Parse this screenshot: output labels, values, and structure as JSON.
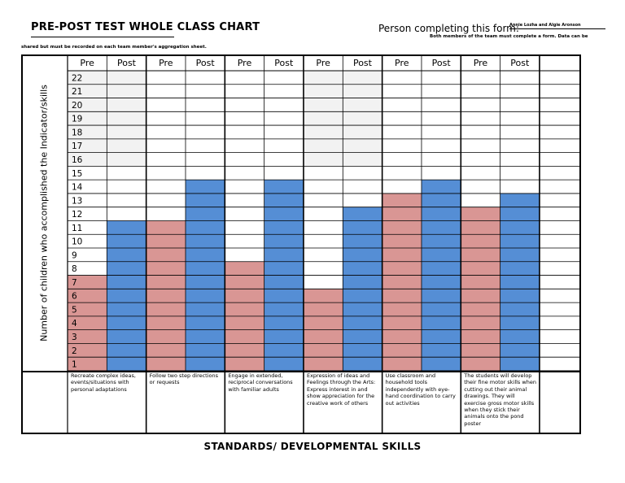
{
  "header": {
    "title": "PRE-POST TEST WHOLE CLASS CHART",
    "person_label": "Person completing this form:",
    "person_value": "Annie Lozha and Algie Aronson",
    "note_right": "Both members of the team must complete a form.  Data can be",
    "note_left": "shared but must be recorded on each team member's aggregation sheet."
  },
  "chart_data": {
    "type": "bar",
    "ylabel": "Number of children who accomplished the Indicator/skills",
    "xlabel": "STANDARDS/ DEVELOPMENTAL SKILLS",
    "ylim": [
      0,
      22
    ],
    "y_ticks": [
      "22",
      "21",
      "20",
      "19",
      "18",
      "17",
      "16",
      "15",
      "14",
      "13",
      "12",
      "11",
      "10",
      "9",
      "8",
      "7",
      "6",
      "5",
      "4",
      "3",
      "2",
      "1"
    ],
    "series": [
      {
        "name": "Pre",
        "color": "#d99694"
      },
      {
        "name": "Post",
        "color": "#558ed5"
      }
    ],
    "categories": [
      "Recreate complex ideas, events/situations with personal adaptations",
      "Follow two step directions or requests",
      "Engage in extended, reciprocal conversations with familiar adults",
      "Expression of ideas and Feelings through the Arts: Express interest in and show appreciation for the creative work of others",
      "Use classroom and household tools independently with eye-hand coordination to carry out activities",
      "The students will develop their fine motor skills when cutting out their animal drawings. They will exercise gross motor skills when they stick their animals onto the pond poster"
    ],
    "groups": [
      {
        "pre": 7,
        "post": 11,
        "shade_top": 15
      },
      {
        "pre": 11,
        "post": 14,
        "shade_top": 22
      },
      {
        "pre": 8,
        "post": 14,
        "shade_top": 22
      },
      {
        "pre": 6,
        "post": 12,
        "shade_top": 15
      },
      {
        "pre": 13,
        "post": 14,
        "shade_top": 22
      },
      {
        "pre": 12,
        "post": 13,
        "shade_top": 22
      }
    ]
  }
}
